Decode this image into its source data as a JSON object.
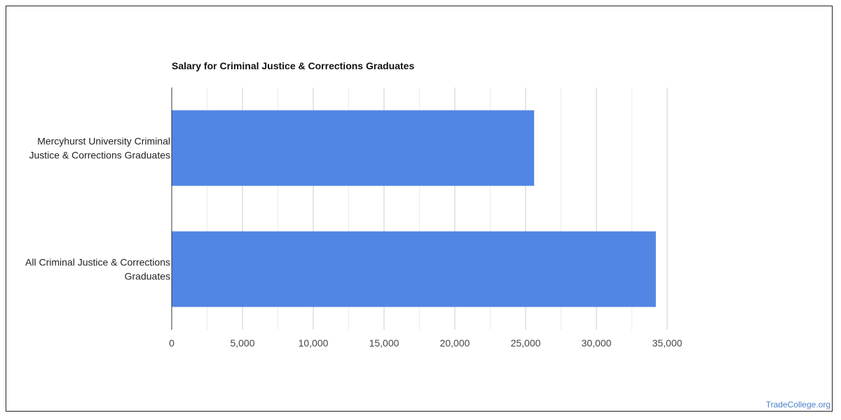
{
  "chart_data": {
    "type": "bar",
    "orientation": "horizontal",
    "title": "Salary for Criminal Justice & Corrections Graduates",
    "xlabel": "",
    "ylabel": "",
    "categories": [
      "Mercyhurst University Criminal Justice & Corrections Graduates",
      "All Criminal Justice & Corrections Graduates"
    ],
    "category_lines": [
      [
        "Mercyhurst University Criminal",
        "Justice & Corrections Graduates"
      ],
      [
        "All Criminal Justice & Corrections",
        "Graduates"
      ]
    ],
    "values": [
      25600,
      34200
    ],
    "xlim": [
      0,
      35000
    ],
    "ticks": [
      0,
      5000,
      10000,
      15000,
      20000,
      25000,
      30000,
      35000
    ],
    "tick_labels": [
      "0",
      "5,000",
      "10,000",
      "15,000",
      "20,000",
      "25,000",
      "30,000",
      "35,000"
    ],
    "minor_grid": true,
    "grid": true,
    "legend": "none",
    "bar_color": "#5286e4",
    "grid_color": "#dddddd"
  },
  "watermark": "TradeCollege.org"
}
